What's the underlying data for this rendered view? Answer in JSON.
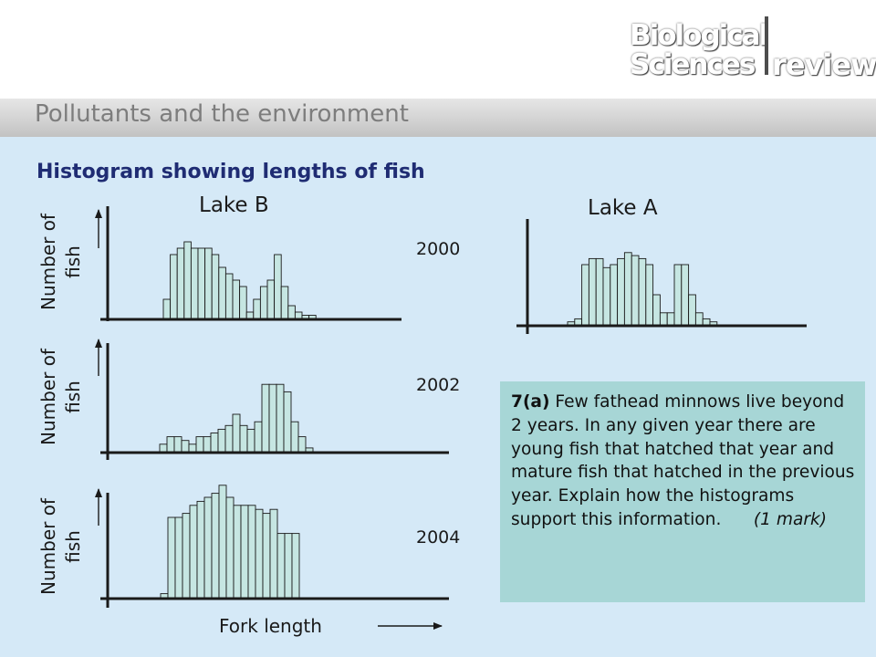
{
  "slide": {
    "title": "Pollutants and the environment",
    "logo": {
      "line1": "Biological",
      "line2": "Sciences",
      "line3": "review"
    }
  },
  "heading": "Histogram showing lengths of fish",
  "chart_data": [
    {
      "type": "bar",
      "title": "Lake B",
      "year": "2000",
      "ylabel": "Number of fish",
      "xlabel": "",
      "values": [
        3,
        10,
        11,
        12,
        11,
        11,
        11,
        10,
        8,
        7,
        6,
        5,
        1,
        3,
        5,
        6,
        10,
        5,
        2,
        1,
        0.5,
        0.5
      ]
    },
    {
      "type": "bar",
      "title": "Lake B",
      "year": "2002",
      "ylabel": "Number of fish",
      "xlabel": "",
      "values": [
        1,
        2,
        2,
        1.5,
        1,
        2,
        2,
        2.5,
        3,
        3.5,
        5,
        3.5,
        3,
        4,
        9,
        9,
        9,
        8,
        4,
        2,
        0.5
      ]
    },
    {
      "type": "bar",
      "title": "Lake B",
      "year": "2004",
      "ylabel": "Number of fish",
      "xlabel": "Fork length",
      "values": [
        1,
        20,
        20,
        21,
        23,
        24,
        25,
        26,
        28,
        25,
        23,
        23,
        23,
        22,
        21,
        22,
        16,
        16,
        16
      ]
    },
    {
      "type": "bar",
      "title": "Lake A",
      "year": "2000",
      "ylabel": "",
      "xlabel": "",
      "values": [
        0.5,
        1,
        10,
        11,
        11,
        9.5,
        10,
        11,
        12,
        11.5,
        11,
        10,
        5,
        2,
        2,
        10,
        10,
        5,
        2,
        1,
        0.5
      ]
    }
  ],
  "labels": {
    "lake_b": "Lake B",
    "lake_a": "Lake A",
    "year_2000": "2000",
    "year_2002": "2002",
    "year_2004": "2004",
    "ylabel_line1": "Number of",
    "ylabel_line2": "fish",
    "xlabel": "Fork length"
  },
  "question": {
    "number": "7(a)",
    "text": "Few fathead  minnows live beyond 2 years. In any given year there are young fish that hatched that year and mature fish that hatched in the previous year. Explain how the histograms support this information.",
    "marks": "(1 mark)"
  },
  "colors": {
    "content_bg": "#d5e9f7",
    "bar_fill": "#c6e6e2",
    "bar_stroke": "#1a1a1a",
    "heading": "#1f2c73",
    "question_bg": "#a7d6d6",
    "title_gray": "#7d7d7d"
  }
}
